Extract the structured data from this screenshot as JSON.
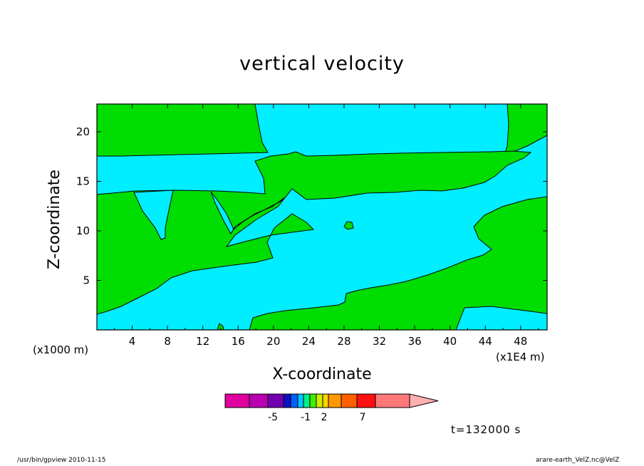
{
  "chart_data": {
    "type": "heatmap",
    "title": "vertical velocity",
    "xlabel": "X-coordinate",
    "ylabel": "Z-coordinate",
    "x_unit_label": "(x1000 m)",
    "x_unit_label_right": "(x1E4 m)",
    "xlim": [
      0,
      51
    ],
    "ylim": [
      0,
      22.8
    ],
    "x_ticks": [
      4,
      8,
      12,
      16,
      20,
      24,
      28,
      32,
      36,
      40,
      44,
      48
    ],
    "y_ticks": [
      5,
      10,
      15,
      20
    ],
    "colors": {
      "positive": "#00dd00",
      "negative": "#00eeff"
    },
    "field_regions": [
      {
        "name": "upper-left updraft",
        "sign": "positive",
        "x": [
          0,
          18
        ],
        "z": [
          17.5,
          22.8
        ]
      },
      {
        "name": "upper-right updraft",
        "sign": "positive",
        "x": [
          47,
          51
        ],
        "z": [
          16,
          22.8
        ]
      },
      {
        "name": "upper-middle downdraft",
        "sign": "negative",
        "x": [
          18,
          47
        ],
        "z": [
          17.5,
          22.8
        ]
      },
      {
        "name": "mid-level updraft band",
        "sign": "positive",
        "x": [
          0,
          45
        ],
        "z": [
          5,
          17.5
        ]
      },
      {
        "name": "lower downdraft band",
        "sign": "negative",
        "x": [
          0,
          51
        ],
        "z": [
          0,
          15
        ]
      },
      {
        "name": "lower-right updraft",
        "sign": "positive",
        "x": [
          18,
          51
        ],
        "z": [
          0,
          13.5
        ]
      }
    ],
    "colorbar": {
      "colors": [
        "#e000a0",
        "#b800b0",
        "#7000b0",
        "#1010c0",
        "#0060ff",
        "#00c8ff",
        "#00ee88",
        "#44ee00",
        "#ccee00",
        "#ffd200",
        "#ff9800",
        "#ff6000",
        "#ff1010",
        "#ff7878",
        "#ffb0b0"
      ],
      "tick_labels": [
        "-5",
        "-1",
        "2",
        "7"
      ]
    },
    "time_label": "t=132000 s"
  },
  "footer": {
    "left": "/usr/bin/gpview   2010-11-15",
    "right": "arare-earth_VelZ.nc@VelZ"
  }
}
